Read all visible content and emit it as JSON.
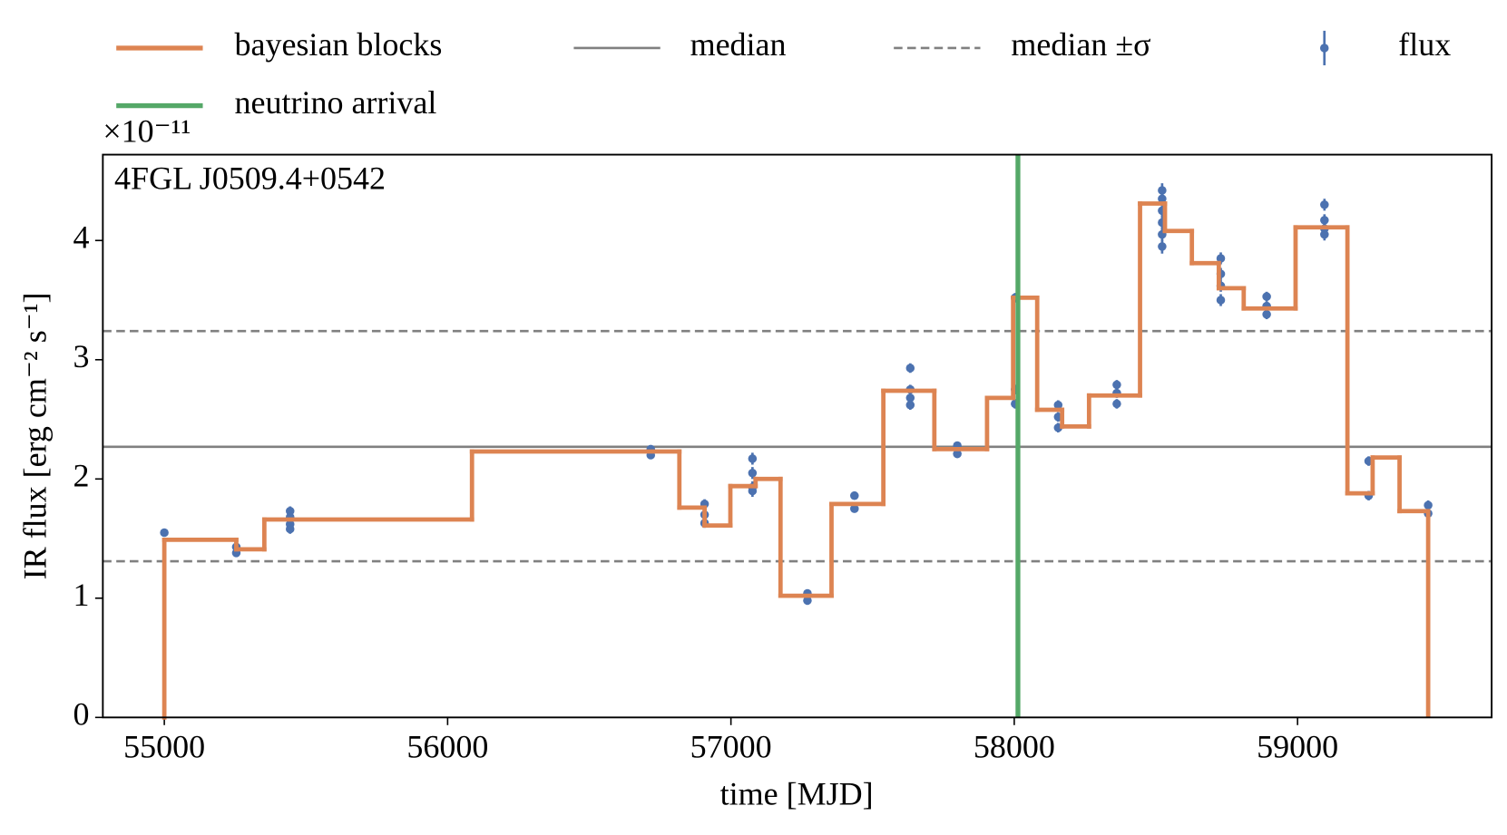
{
  "chart_data": {
    "type": "line",
    "annotation": "4FGL J0509.4+0542",
    "xlabel": "time [MJD]",
    "ylabel": "IR flux [erg cm⁻² s⁻¹]",
    "y_offset_label": "×10⁻¹¹",
    "xlim": [
      54783,
      59685
    ],
    "ylim": [
      0,
      4.72
    ],
    "xticks": [
      55000,
      56000,
      57000,
      58000,
      59000
    ],
    "yticks": [
      0,
      1,
      2,
      3,
      4
    ],
    "series": [
      {
        "name": "bayesian blocks",
        "type": "step",
        "color": "#dd8452",
        "edges": [
          55000,
          55254,
          55353,
          56086,
          56818,
          56907,
          56998,
          57087,
          57175,
          57355,
          57538,
          57718,
          57904,
          57996,
          58081,
          58169,
          58264,
          58444,
          58532,
          58627,
          58722,
          58810,
          58993,
          59176,
          59265,
          59360,
          59461
        ],
        "values": [
          1.49,
          1.41,
          1.66,
          2.23,
          1.76,
          1.61,
          1.94,
          2.0,
          1.02,
          1.79,
          2.74,
          2.25,
          2.68,
          3.52,
          2.58,
          2.44,
          2.7,
          4.31,
          4.08,
          3.81,
          3.6,
          3.43,
          4.11,
          1.88,
          2.18,
          1.73
        ]
      },
      {
        "name": "flux",
        "type": "errorbar",
        "color": "#4c72b0",
        "x": [
          55000,
          55254,
          55254,
          55444,
          55444,
          55444,
          55444,
          56717,
          56717,
          56907,
          56907,
          56907,
          57076,
          57076,
          57076,
          57076,
          57270,
          57270,
          57436,
          57436,
          57633,
          57633,
          57633,
          57633,
          57799,
          57799,
          58003,
          58003,
          58003,
          58155,
          58155,
          58155,
          58362,
          58362,
          58362,
          58522,
          58522,
          58522,
          58522,
          58522,
          58522,
          58729,
          58729,
          58729,
          58729,
          58891,
          58891,
          58891,
          59095,
          59095,
          59095,
          59095,
          59251,
          59251,
          59461,
          59461
        ],
        "values": [
          1.55,
          1.43,
          1.38,
          1.73,
          1.68,
          1.62,
          1.58,
          2.25,
          2.2,
          1.79,
          1.7,
          1.63,
          2.17,
          2.05,
          1.93,
          1.9,
          1.04,
          0.98,
          1.86,
          1.75,
          2.93,
          2.75,
          2.68,
          2.62,
          2.28,
          2.21,
          2.75,
          2.63,
          3.52,
          2.62,
          2.52,
          2.43,
          2.79,
          2.72,
          2.63,
          4.42,
          4.35,
          4.25,
          4.15,
          4.05,
          3.95,
          3.85,
          3.72,
          3.62,
          3.5,
          3.53,
          3.45,
          3.38,
          4.3,
          4.17,
          4.1,
          4.05,
          2.15,
          1.86,
          1.78,
          1.71
        ],
        "errors": [
          0.03,
          0.03,
          0.03,
          0.04,
          0.04,
          0.04,
          0.04,
          0.03,
          0.03,
          0.04,
          0.04,
          0.04,
          0.05,
          0.05,
          0.05,
          0.05,
          0.03,
          0.03,
          0.03,
          0.03,
          0.04,
          0.04,
          0.04,
          0.04,
          0.03,
          0.03,
          0.04,
          0.04,
          0.04,
          0.04,
          0.04,
          0.04,
          0.04,
          0.04,
          0.04,
          0.06,
          0.06,
          0.06,
          0.06,
          0.06,
          0.06,
          0.05,
          0.05,
          0.05,
          0.05,
          0.04,
          0.04,
          0.04,
          0.05,
          0.05,
          0.05,
          0.05,
          0.04,
          0.04,
          0.04,
          0.04
        ]
      }
    ],
    "hlines": [
      {
        "name": "median",
        "color": "#808080",
        "style": "solid",
        "values": [
          2.27
        ]
      },
      {
        "name": "median ±σ",
        "color": "#808080",
        "style": "dashed",
        "values": [
          3.24,
          1.31
        ]
      }
    ],
    "vlines": [
      {
        "name": "neutrino arrival",
        "color": "#55a868",
        "values": [
          58013
        ]
      }
    ]
  }
}
